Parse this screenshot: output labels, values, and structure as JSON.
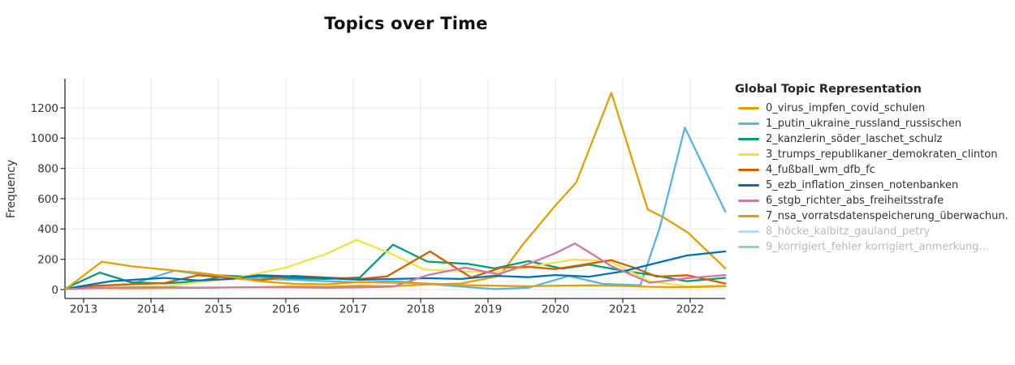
{
  "title": "Topics over Time",
  "legend": {
    "title": "Global Topic Representation",
    "items": [
      {
        "label": "0_virus_impfen_covid_schulen",
        "color": "#E69F00",
        "muted": false
      },
      {
        "label": "1_putin_ukraine_russland_russischen",
        "color": "#56B4E9",
        "muted": false
      },
      {
        "label": "2_kanzlerin_söder_laschet_schulz",
        "color": "#009E73",
        "muted": false
      },
      {
        "label": "3_trumps_republikaner_demokraten_clinton",
        "color": "#F0E442",
        "muted": false
      },
      {
        "label": "4_fußball_wm_dfb_fc",
        "color": "#D55E00",
        "muted": false
      },
      {
        "label": "5_ezb_inflation_zinsen_notenbanken",
        "color": "#0072B2",
        "muted": false
      },
      {
        "label": "6_stgb_richter_abs_freiheitsstrafe",
        "color": "#CC79A7",
        "muted": false
      },
      {
        "label": "7_nsa_vorratsdatenspeicherung_überwachun.",
        "color": "#E69F00",
        "muted": false
      },
      {
        "label": "8_höcke_kalbitz_gauland_petry",
        "color": "#56B4E9",
        "muted": true
      },
      {
        "label": "9_korrigiert_fehler korrigiert_anmerkung...",
        "color": "#009E73",
        "muted": true
      }
    ]
  },
  "chart_data": {
    "type": "line",
    "title": "Topics over Time",
    "xlabel": "",
    "ylabel": "Frequency",
    "x_ticks": [
      2013,
      2014,
      2015,
      2016,
      2017,
      2018,
      2019,
      2020,
      2021,
      2022
    ],
    "y_ticks": [
      0,
      200,
      400,
      600,
      800,
      1000,
      1200
    ],
    "x_range": [
      2012.72,
      2022.52
    ],
    "y_range": [
      0,
      1393
    ],
    "grid": true,
    "legend_position": "right",
    "series": [
      {
        "name": "0_virus_impfen_covid_schulen",
        "color": "#E69F00",
        "hidden": false,
        "points": [
          [
            2012.73,
            3
          ],
          [
            2013.2,
            10
          ],
          [
            2013.7,
            8
          ],
          [
            2014.2,
            10
          ],
          [
            2014.7,
            12
          ],
          [
            2015.2,
            14
          ],
          [
            2015.6,
            16
          ],
          [
            2016.1,
            20
          ],
          [
            2016.6,
            18
          ],
          [
            2017.1,
            25
          ],
          [
            2017.6,
            22
          ],
          [
            2018.1,
            34
          ],
          [
            2018.6,
            40
          ],
          [
            2019.17,
            90
          ],
          [
            2019.53,
            305
          ],
          [
            2020.0,
            555
          ],
          [
            2020.31,
            707
          ],
          [
            2020.83,
            1300
          ],
          [
            2021.37,
            530
          ],
          [
            2021.6,
            478
          ],
          [
            2021.97,
            375
          ],
          [
            2022.52,
            140
          ]
        ]
      },
      {
        "name": "1_putin_ukraine_russland_russischen",
        "color": "#56B4E9",
        "hidden": false,
        "points": [
          [
            2012.73,
            5
          ],
          [
            2013.2,
            25
          ],
          [
            2013.7,
            35
          ],
          [
            2014.35,
            125
          ],
          [
            2014.7,
            103
          ],
          [
            2015.2,
            90
          ],
          [
            2015.6,
            70
          ],
          [
            2016.1,
            65
          ],
          [
            2016.6,
            55
          ],
          [
            2017.1,
            48
          ],
          [
            2017.6,
            55
          ],
          [
            2018.1,
            38
          ],
          [
            2018.6,
            20
          ],
          [
            2019.1,
            3
          ],
          [
            2019.6,
            12
          ],
          [
            2020.2,
            90
          ],
          [
            2020.7,
            38
          ],
          [
            2021.26,
            28
          ],
          [
            2021.55,
            410
          ],
          [
            2021.92,
            1070
          ],
          [
            2022.52,
            515
          ]
        ]
      },
      {
        "name": "2_kanzlerin_söder_laschet_schulz",
        "color": "#009E73",
        "hidden": false,
        "points": [
          [
            2012.73,
            8
          ],
          [
            2013.24,
            112
          ],
          [
            2013.7,
            48
          ],
          [
            2014.2,
            40
          ],
          [
            2014.7,
            55
          ],
          [
            2015.1,
            90
          ],
          [
            2015.6,
            85
          ],
          [
            2016.1,
            75
          ],
          [
            2016.6,
            70
          ],
          [
            2017.1,
            80
          ],
          [
            2017.59,
            296
          ],
          [
            2018.1,
            185
          ],
          [
            2018.7,
            170
          ],
          [
            2019.1,
            140
          ],
          [
            2019.6,
            188
          ],
          [
            2020.1,
            138
          ],
          [
            2020.5,
            165
          ],
          [
            2021.0,
            125
          ],
          [
            2021.45,
            95
          ],
          [
            2021.95,
            55
          ],
          [
            2022.52,
            77
          ]
        ]
      },
      {
        "name": "3_trumps_republikaner_demokraten_clinton",
        "color": "#F0E442",
        "hidden": false,
        "points": [
          [
            2012.73,
            3
          ],
          [
            2013.2,
            15
          ],
          [
            2013.7,
            18
          ],
          [
            2014.2,
            20
          ],
          [
            2014.7,
            48
          ],
          [
            2015.25,
            75
          ],
          [
            2016.0,
            145
          ],
          [
            2016.6,
            235
          ],
          [
            2017.05,
            328
          ],
          [
            2017.6,
            230
          ],
          [
            2018.05,
            133
          ],
          [
            2018.6,
            120
          ],
          [
            2019.2,
            115
          ],
          [
            2019.6,
            150
          ],
          [
            2020.26,
            197
          ],
          [
            2020.8,
            188
          ],
          [
            2021.4,
            55
          ],
          [
            2021.95,
            22
          ],
          [
            2022.52,
            28
          ]
        ]
      },
      {
        "name": "4_fußball_wm_dfb_fc",
        "color": "#D55E00",
        "hidden": false,
        "points": [
          [
            2012.73,
            5
          ],
          [
            2013.2,
            25
          ],
          [
            2013.7,
            35
          ],
          [
            2014.2,
            43
          ],
          [
            2014.7,
            95
          ],
          [
            2015.2,
            77
          ],
          [
            2015.6,
            60
          ],
          [
            2016.1,
            91
          ],
          [
            2016.6,
            80
          ],
          [
            2017.1,
            70
          ],
          [
            2017.5,
            87
          ],
          [
            2018.14,
            252
          ],
          [
            2018.75,
            80
          ],
          [
            2019.2,
            145
          ],
          [
            2019.6,
            150
          ],
          [
            2020.0,
            135
          ],
          [
            2020.83,
            194
          ],
          [
            2021.2,
            140
          ],
          [
            2021.5,
            85
          ],
          [
            2021.95,
            95
          ],
          [
            2022.52,
            40
          ]
        ]
      },
      {
        "name": "5_ezb_inflation_zinsen_notenbanken",
        "color": "#0072B2",
        "hidden": false,
        "points": [
          [
            2012.73,
            5
          ],
          [
            2013.4,
            55
          ],
          [
            2014.2,
            77
          ],
          [
            2014.7,
            60
          ],
          [
            2015.2,
            70
          ],
          [
            2015.6,
            95
          ],
          [
            2016.1,
            87
          ],
          [
            2016.6,
            75
          ],
          [
            2017.1,
            65
          ],
          [
            2017.6,
            70
          ],
          [
            2018.1,
            75
          ],
          [
            2018.6,
            70
          ],
          [
            2019.1,
            91
          ],
          [
            2019.6,
            82
          ],
          [
            2020.0,
            96
          ],
          [
            2020.5,
            85
          ],
          [
            2021.0,
            120
          ],
          [
            2021.45,
            170
          ],
          [
            2021.95,
            225
          ],
          [
            2022.52,
            252
          ]
        ]
      },
      {
        "name": "6_stgb_richter_abs_freiheitsstrafe",
        "color": "#CC79A7",
        "hidden": false,
        "points": [
          [
            2012.73,
            3
          ],
          [
            2013.2,
            10
          ],
          [
            2013.7,
            14
          ],
          [
            2014.2,
            16
          ],
          [
            2014.7,
            12
          ],
          [
            2015.2,
            14
          ],
          [
            2015.6,
            15
          ],
          [
            2016.1,
            14
          ],
          [
            2016.6,
            12
          ],
          [
            2017.1,
            14
          ],
          [
            2017.6,
            20
          ],
          [
            2018.1,
            95
          ],
          [
            2018.66,
            145
          ],
          [
            2019.15,
            100
          ],
          [
            2019.6,
            170
          ],
          [
            2020.0,
            240
          ],
          [
            2020.29,
            305
          ],
          [
            2020.83,
            155
          ],
          [
            2021.4,
            45
          ],
          [
            2021.95,
            75
          ],
          [
            2022.52,
            96
          ]
        ]
      },
      {
        "name": "7_nsa_vorratsdatenspeicherung_überwachun.",
        "color": "#E69F00",
        "hidden": false,
        "points": [
          [
            2012.73,
            2
          ],
          [
            2013.27,
            184
          ],
          [
            2013.7,
            155
          ],
          [
            2014.2,
            132
          ],
          [
            2014.7,
            112
          ],
          [
            2015.2,
            83
          ],
          [
            2015.6,
            55
          ],
          [
            2016.1,
            38
          ],
          [
            2016.6,
            35
          ],
          [
            2017.1,
            50
          ],
          [
            2017.6,
            45
          ],
          [
            2018.1,
            40
          ],
          [
            2018.6,
            30
          ],
          [
            2019.1,
            25
          ],
          [
            2019.6,
            22
          ],
          [
            2020.0,
            25
          ],
          [
            2020.5,
            28
          ],
          [
            2021.0,
            24
          ],
          [
            2021.4,
            18
          ],
          [
            2021.95,
            15
          ],
          [
            2022.52,
            22
          ]
        ]
      },
      {
        "name": "8_höcke_kalbitz_gauland_petry",
        "color": "#56B4E9",
        "hidden": true,
        "points": []
      },
      {
        "name": "9_korrigiert_fehler korrigiert_anmerkung...",
        "color": "#009E73",
        "hidden": true,
        "points": []
      }
    ]
  }
}
